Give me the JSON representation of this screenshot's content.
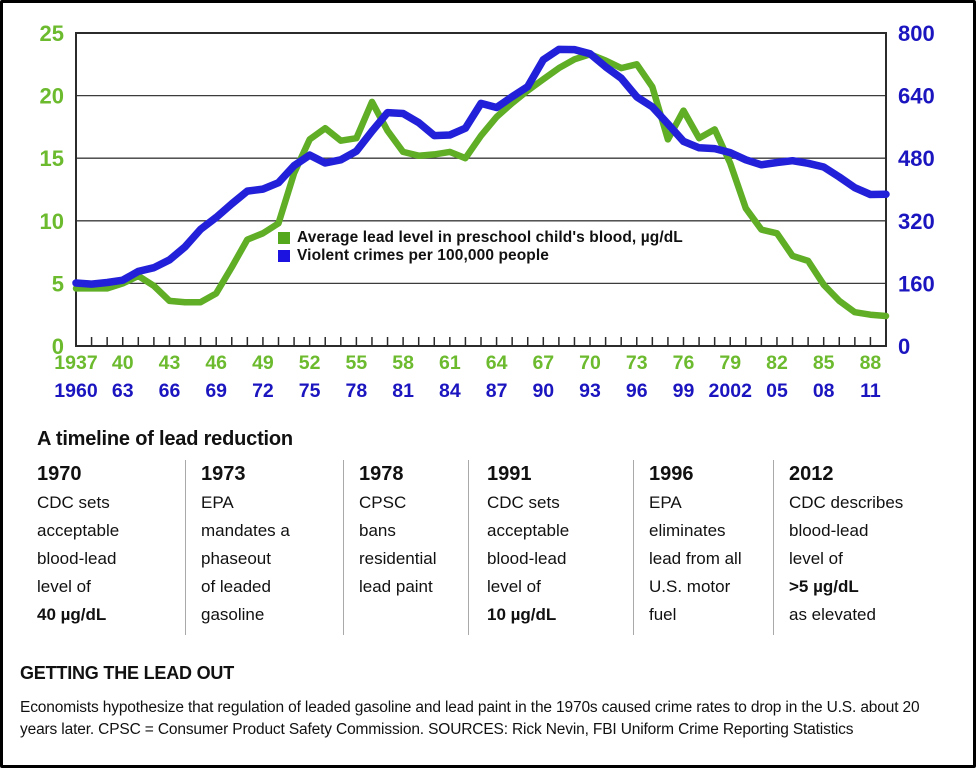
{
  "chart": {
    "legend": [
      {
        "label": "Average lead level in preschool child's blood, µg/dL",
        "color": "#54a81b"
      },
      {
        "label": "Violent crimes per 100,000 people",
        "color": "#1c13e0"
      }
    ]
  },
  "chart_data": {
    "type": "line",
    "title": "",
    "grid": true,
    "legend_position": "inside-left-middle",
    "x_labels_green": [
      "1937",
      "40",
      "43",
      "46",
      "49",
      "52",
      "55",
      "58",
      "61",
      "64",
      "67",
      "70",
      "73",
      "76",
      "79",
      "82",
      "85",
      "88"
    ],
    "x_labels_blue": [
      "1960",
      "63",
      "66",
      "69",
      "72",
      "75",
      "78",
      "81",
      "84",
      "87",
      "90",
      "93",
      "96",
      "99",
      "2002",
      "05",
      "08",
      "11"
    ],
    "x_label_green_color": "#6cba2e",
    "x_label_blue_color": "#1b15c0",
    "y_left": {
      "ticks": [
        0,
        5,
        10,
        15,
        20,
        25
      ],
      "range": [
        0,
        25
      ],
      "label_color": "#6cba2e"
    },
    "y_right": {
      "ticks": [
        0,
        160,
        320,
        480,
        640,
        800
      ],
      "range": [
        0,
        800
      ],
      "label_color": "#1b15c0"
    },
    "series": [
      {
        "name": "Average lead level in preschool child's blood, µg/dL",
        "axis": "left",
        "color": "#5fae25",
        "year_start": 1937,
        "year_end": 1989,
        "values": [
          4.6,
          4.6,
          4.6,
          5.0,
          5.6,
          4.8,
          3.6,
          3.5,
          3.5,
          4.2,
          6.3,
          8.5,
          9.0,
          9.8,
          13.8,
          16.5,
          17.4,
          16.4,
          16.6,
          19.5,
          17.2,
          15.5,
          15.2,
          15.3,
          15.5,
          15.0,
          16.8,
          18.3,
          19.4,
          20.4,
          21.3,
          22.2,
          22.9,
          23.3,
          22.8,
          22.2,
          22.5,
          20.7,
          16.5,
          18.8,
          16.6,
          17.3,
          14.6,
          11.0,
          9.3,
          9.0,
          7.2,
          6.8,
          4.9,
          3.6,
          2.7,
          2.5,
          2.4
        ]
      },
      {
        "name": "Violent crimes per 100,000 people",
        "axis": "right",
        "color": "#2220d8",
        "year_start": 1960,
        "year_end": 2012,
        "values": [
          160.9,
          158.1,
          162.3,
          168.2,
          190.6,
          200.2,
          220.0,
          253.2,
          298.4,
          328.7,
          363.5,
          396.0,
          401.0,
          417.4,
          461.1,
          487.8,
          467.8,
          475.9,
          497.8,
          548.9,
          596.6,
          594.3,
          571.1,
          537.7,
          539.2,
          556.6,
          620.1,
          609.7,
          637.2,
          663.1,
          731.8,
          758.1,
          757.5,
          746.8,
          713.6,
          684.5,
          636.6,
          611.0,
          567.6,
          523.0,
          506.5,
          504.5,
          494.4,
          475.8,
          463.2,
          469.0,
          473.6,
          466.9,
          457.5,
          431.9,
          404.5,
          387.1,
          387.8
        ]
      }
    ]
  },
  "timeline": {
    "heading": "A timeline of lead reduction",
    "events": [
      {
        "year": "1970",
        "body": "CDC sets\nacceptable\nblood-lead\nlevel of",
        "bold_value": "40 µg/dL",
        "tail": ""
      },
      {
        "year": "1973",
        "body": "EPA\nmandates a\nphaseout\nof leaded\ngasoline",
        "bold_value": "",
        "tail": ""
      },
      {
        "year": "1978",
        "body": "CPSC\nbans\nresidential\nlead paint",
        "bold_value": "",
        "tail": ""
      },
      {
        "year": "1991",
        "body": "CDC sets\nacceptable\nblood-lead\nlevel of",
        "bold_value": "10 µg/dL",
        "tail": ""
      },
      {
        "year": "1996",
        "body": "EPA\neliminates\nlead from all\nU.S. motor\nfuel",
        "bold_value": "",
        "tail": ""
      },
      {
        "year": "2012",
        "body": "CDC describes\nblood-lead\nlevel of",
        "bold_value": ">5 µg/dL",
        "tail": "as elevated"
      }
    ]
  },
  "footer": {
    "title": "GETTING THE LEAD OUT",
    "caption": "Economists hypothesize that regulation of leaded gasoline and lead paint in the 1970s caused crime rates to drop in the U.S. about 20 years later. CPSC = Consumer Product Safety Commission. SOURCES: Rick Nevin, FBI Uniform Crime Reporting Statistics"
  }
}
